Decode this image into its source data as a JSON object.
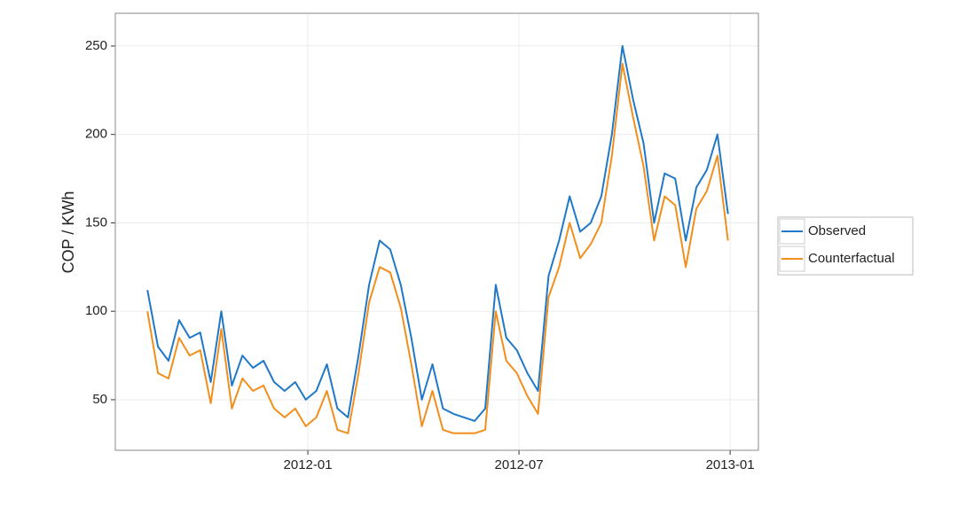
{
  "chart_data": {
    "type": "line",
    "y_label": "COP / KWh",
    "x": [
      2011.62,
      2011.645,
      2011.67,
      2011.695,
      2011.72,
      2011.745,
      2011.77,
      2011.795,
      2011.82,
      2011.845,
      2011.87,
      2011.895,
      2011.92,
      2011.945,
      2011.97,
      2011.995,
      2012.02,
      2012.045,
      2012.07,
      2012.095,
      2012.12,
      2012.145,
      2012.17,
      2012.195,
      2012.22,
      2012.245,
      2012.27,
      2012.295,
      2012.32,
      2012.345,
      2012.37,
      2012.395,
      2012.42,
      2012.445,
      2012.47,
      2012.495,
      2012.52,
      2012.545,
      2012.57,
      2012.595,
      2012.62,
      2012.645,
      2012.67,
      2012.695,
      2012.72,
      2012.745,
      2012.77,
      2012.795,
      2012.82,
      2012.845,
      2012.87,
      2012.895,
      2012.92,
      2012.945,
      2012.97,
      2012.995
    ],
    "series": [
      {
        "name": "Observed",
        "color": "#1f78c8",
        "values": [
          112,
          80,
          72,
          95,
          85,
          88,
          60,
          100,
          58,
          75,
          68,
          72,
          60,
          55,
          60,
          50,
          55,
          70,
          45,
          40,
          75,
          115,
          140,
          135,
          115,
          85,
          50,
          70,
          45,
          42,
          40,
          38,
          45,
          115,
          85,
          78,
          65,
          55,
          120,
          140,
          165,
          145,
          150,
          165,
          200,
          250,
          220,
          195,
          150,
          178,
          175,
          140,
          170,
          180,
          200,
          155
        ]
      },
      {
        "name": "Counterfactual",
        "color": "#f28e1c",
        "values": [
          100,
          65,
          62,
          85,
          75,
          78,
          48,
          90,
          45,
          62,
          55,
          58,
          45,
          40,
          45,
          35,
          40,
          55,
          33,
          31,
          65,
          105,
          125,
          122,
          102,
          70,
          35,
          55,
          33,
          31,
          31,
          31,
          33,
          100,
          72,
          65,
          52,
          42,
          108,
          125,
          150,
          130,
          138,
          150,
          188,
          240,
          210,
          182,
          140,
          165,
          160,
          125,
          158,
          168,
          188,
          140
        ]
      }
    ],
    "xlim": [
      2011.544,
      2013.067
    ],
    "xticks": [
      {
        "value": 2012.0,
        "label": "2012-01"
      },
      {
        "value": 2012.5,
        "label": "2012-07"
      },
      {
        "value": 2013.0,
        "label": "2013-01"
      }
    ],
    "ylim": [
      21.4,
      268.5
    ],
    "yticks": [
      50,
      100,
      150,
      200,
      250
    ],
    "grid": true,
    "legend": "right"
  }
}
